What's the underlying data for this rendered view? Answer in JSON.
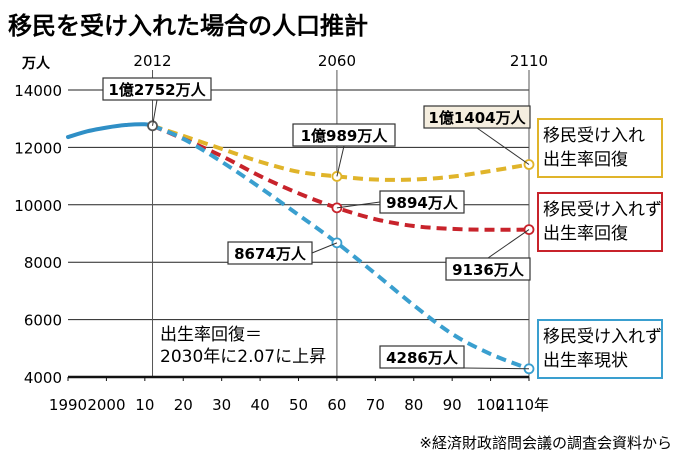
{
  "chart_data": {
    "type": "line",
    "title": "移民を受け入れた場合の人口推計",
    "y_unit": "万人",
    "x_unit_suffix": "年",
    "xlim": [
      1990,
      2110
    ],
    "ylim": [
      4000,
      14000
    ],
    "y_ticks": [
      4000,
      6000,
      8000,
      10000,
      12000,
      14000
    ],
    "x_ticks": [
      {
        "v": 1990,
        "t": "1990"
      },
      {
        "v": 2000,
        "t": "2000"
      },
      {
        "v": 2010,
        "t": "10"
      },
      {
        "v": 2020,
        "t": "20"
      },
      {
        "v": 2030,
        "t": "30"
      },
      {
        "v": 2040,
        "t": "40"
      },
      {
        "v": 2050,
        "t": "50"
      },
      {
        "v": 2060,
        "t": "60"
      },
      {
        "v": 2070,
        "t": "70"
      },
      {
        "v": 2080,
        "t": "80"
      },
      {
        "v": 2090,
        "t": "90"
      },
      {
        "v": 2100,
        "t": "100"
      },
      {
        "v": 2110,
        "t": "2110"
      }
    ],
    "top_year_labels": [
      {
        "x": 2012,
        "text": "2012"
      },
      {
        "x": 2060,
        "text": "2060"
      },
      {
        "x": 2110,
        "text": "2110"
      }
    ],
    "grid": true,
    "history": {
      "color": "#2f8fc6",
      "x": [
        1990,
        1995,
        2000,
        2005,
        2010,
        2012
      ],
      "y": [
        12360,
        12560,
        12690,
        12780,
        12806,
        12752
      ]
    },
    "series": [
      {
        "name": "移民受け入れ 出生率回復",
        "color": "#e0b42a",
        "x": [
          2012,
          2020,
          2030,
          2040,
          2050,
          2060,
          2070,
          2080,
          2090,
          2100,
          2110
        ],
        "y": [
          12752,
          12400,
          11950,
          11500,
          11150,
          10989,
          10880,
          10880,
          10980,
          11180,
          11404
        ]
      },
      {
        "name": "移民受け入れず 出生率回復",
        "color": "#c8232b",
        "x": [
          2012,
          2020,
          2030,
          2040,
          2050,
          2060,
          2070,
          2080,
          2090,
          2100,
          2110
        ],
        "y": [
          12752,
          12300,
          11700,
          11000,
          10400,
          9894,
          9500,
          9260,
          9160,
          9130,
          9136
        ]
      },
      {
        "name": "移民受け入れず 出生率現状",
        "color": "#3a9fcf",
        "x": [
          2012,
          2020,
          2030,
          2040,
          2050,
          2060,
          2070,
          2080,
          2090,
          2100,
          2110
        ],
        "y": [
          12752,
          12300,
          11500,
          10600,
          9650,
          8674,
          7600,
          6500,
          5500,
          4800,
          4286
        ]
      }
    ],
    "points": [
      {
        "x": 2012,
        "y": 12752,
        "color": "#555555"
      },
      {
        "x": 2060,
        "y": 10989,
        "color": "#e0b42a"
      },
      {
        "x": 2060,
        "y": 9894,
        "color": "#c8232b"
      },
      {
        "x": 2060,
        "y": 8674,
        "color": "#3a9fcf"
      },
      {
        "x": 2110,
        "y": 11404,
        "color": "#e0b42a"
      },
      {
        "x": 2110,
        "y": 9136,
        "color": "#c8232b"
      },
      {
        "x": 2110,
        "y": 4286,
        "color": "#3a9fcf"
      }
    ],
    "data_labels": [
      {
        "text": "1億2752万人",
        "x": 2012,
        "y": 12752
      },
      {
        "text": "1億989万人",
        "x": 2060,
        "y": 10989
      },
      {
        "text": "9894万人",
        "x": 2060,
        "y": 9894
      },
      {
        "text": "8674万人",
        "x": 2060,
        "y": 8674
      },
      {
        "text": "1億1404万人",
        "x": 2110,
        "y": 11404
      },
      {
        "text": "9136万人",
        "x": 2110,
        "y": 9136
      },
      {
        "text": "4286万人",
        "x": 2110,
        "y": 4286
      }
    ],
    "legend_boxes": [
      {
        "lines": [
          "移民受け入れ",
          "出生率回復"
        ],
        "color": "#e0b42a"
      },
      {
        "lines": [
          "移民受け入れず",
          "出生率回復"
        ],
        "color": "#c8232b"
      },
      {
        "lines": [
          "移民受け入れず",
          "出生率現状"
        ],
        "color": "#3a9fcf"
      }
    ],
    "annotation": [
      "出生率回復＝",
      "2030年に2.07に上昇"
    ],
    "source": "※経済財政諮問会議の調査会資料から"
  }
}
